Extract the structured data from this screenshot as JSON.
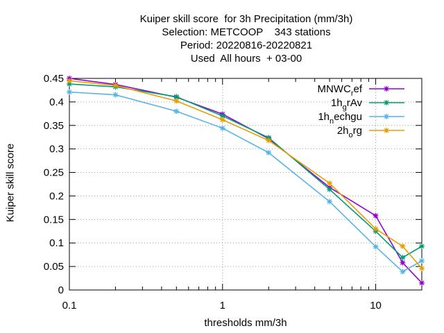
{
  "chart_data": {
    "type": "line",
    "title": [
      "Kuiper skill score  for 3h Precipitation (mm/3h)",
      "Selection: METCOOP    343 stations",
      "Period: 20220816-20220821",
      "Used  All hours  + 03-00"
    ],
    "xlabel": "thresholds mm/3h",
    "ylabel": "Kuiper skill score",
    "x_scale": "log",
    "xlim": [
      0.1,
      20
    ],
    "ylim": [
      0,
      0.45
    ],
    "x_ticks": [
      0.1,
      1,
      10
    ],
    "x_tick_labels": [
      "0.1",
      "1",
      "10"
    ],
    "y_ticks": [
      0,
      0.05,
      0.1,
      0.15,
      0.2,
      0.25,
      0.3,
      0.35,
      0.4,
      0.45
    ],
    "y_tick_labels": [
      "0",
      "0.05",
      "0.1",
      "0.15",
      "0.2",
      "0.25",
      "0.3",
      "0.35",
      "0.4",
      "0.45"
    ],
    "grid": true,
    "legend_position": "top-right",
    "x": [
      0.1,
      0.2,
      0.5,
      1,
      2,
      5,
      10,
      15,
      20
    ],
    "series": [
      {
        "name": "MNWC_ref",
        "legend_main": "MNWC",
        "legend_sub": "r",
        "legend_tail": "ef",
        "color": "#9400d3",
        "values": [
          0.45,
          0.437,
          0.41,
          0.374,
          0.322,
          0.218,
          0.158,
          0.058,
          0.015
        ]
      },
      {
        "name": "1h_grAv",
        "legend_main": "1h",
        "legend_sub": "g",
        "legend_tail": "rAv",
        "color": "#009e73",
        "values": [
          0.438,
          0.432,
          0.411,
          0.37,
          0.324,
          0.214,
          0.125,
          0.069,
          0.093
        ]
      },
      {
        "name": "1h_nechgu",
        "legend_main": "1h",
        "legend_sub": "n",
        "legend_tail": "echgu",
        "color": "#56b4e9",
        "values": [
          0.421,
          0.415,
          0.38,
          0.344,
          0.292,
          0.188,
          0.092,
          0.039,
          0.062
        ]
      },
      {
        "name": "2h_org",
        "legend_main": "2h",
        "legend_sub": "o",
        "legend_tail": "rg",
        "color": "#e69f00",
        "values": [
          0.445,
          0.435,
          0.402,
          0.362,
          0.318,
          0.227,
          0.13,
          0.093,
          0.046
        ]
      }
    ]
  }
}
